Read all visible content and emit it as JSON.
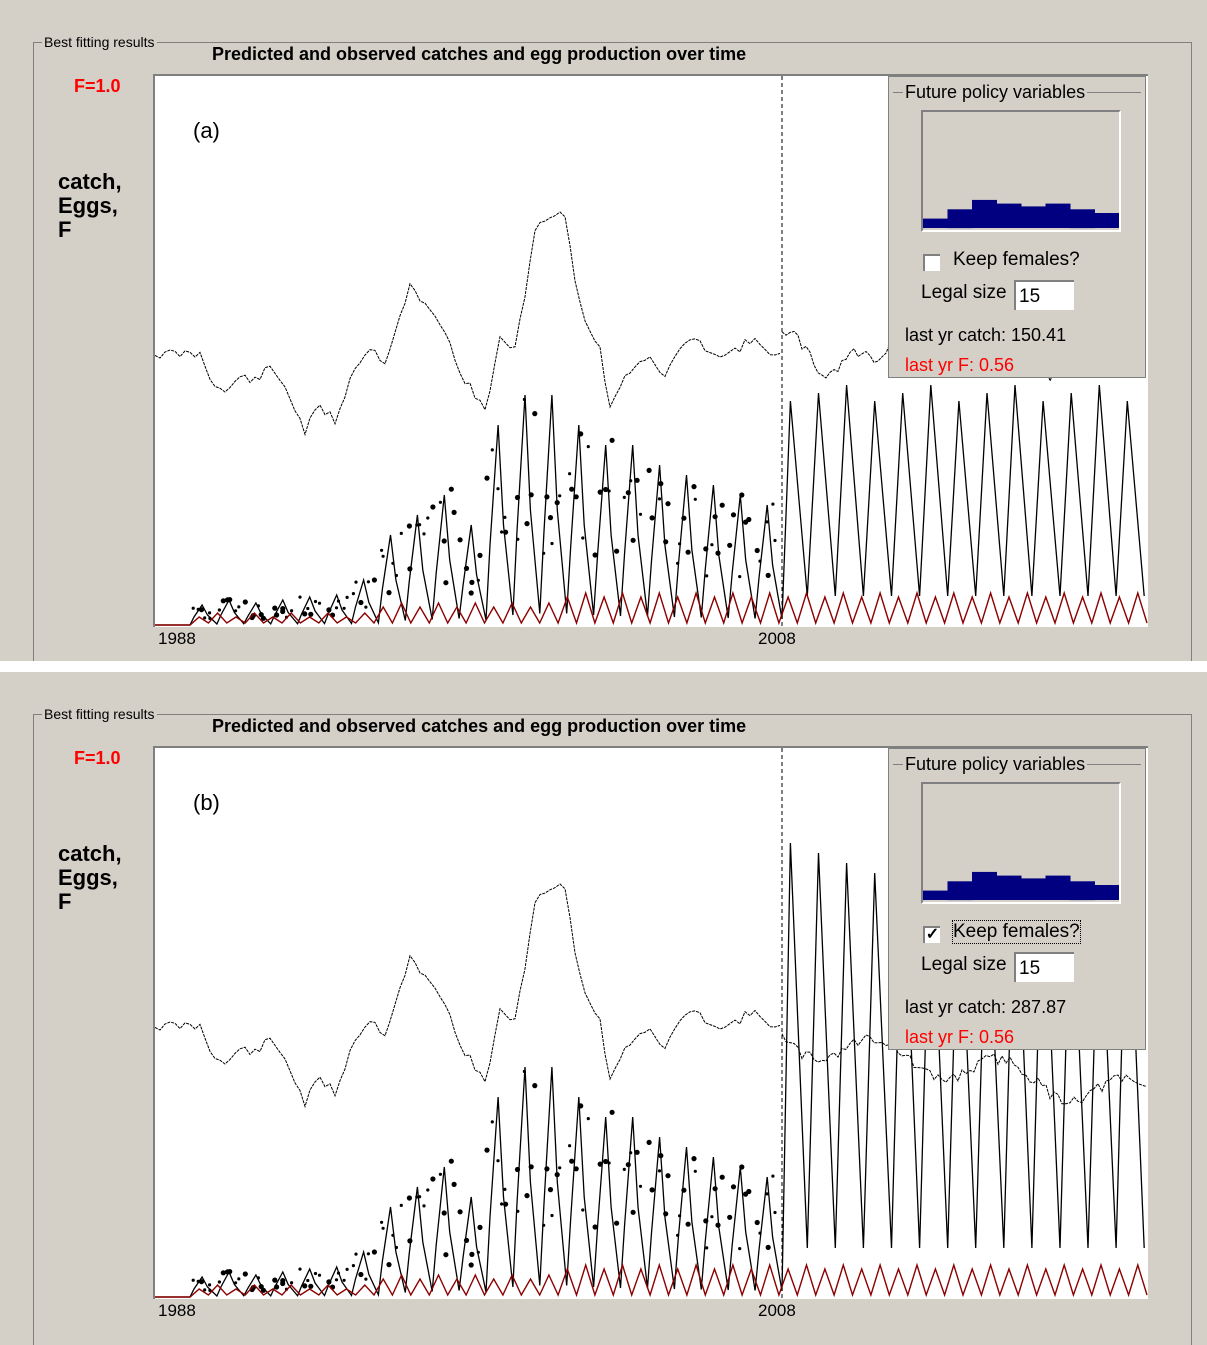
{
  "panels": [
    {
      "group_label": "Best fitting results",
      "title": "Predicted and observed catches and egg production over time",
      "f_label": "F=1.0",
      "ylabel": "catch,\nEggs,\nF",
      "plot_letter": "(a)",
      "x_ticks": [
        "1988",
        "2008"
      ],
      "policy": {
        "legend": "Future policy variables",
        "keep_females_label": "Keep females?",
        "keep_females_checked": false,
        "keep_females_check_glyph": "",
        "legal_size_label": "Legal size",
        "legal_size_value": "15",
        "last_yr_catch": "last yr catch: 150.41",
        "last_yr_f": "last yr F: 0.56"
      }
    },
    {
      "group_label": "Best fitting results",
      "title": "Predicted and observed catches and egg production over time",
      "f_label": "F=1.0",
      "ylabel": "catch,\nEggs,\nF",
      "plot_letter": "(b)",
      "x_ticks": [
        "1988",
        "2008"
      ],
      "policy": {
        "legend": "Future policy variables",
        "keep_females_label": "Keep females?",
        "keep_females_checked": true,
        "keep_females_check_glyph": "✓",
        "legal_size_label": "Legal size",
        "legal_size_value": "15",
        "last_yr_catch": "last yr catch: 287.87",
        "last_yr_f": "last yr F: 0.56"
      }
    }
  ],
  "colors": {
    "background": "#d4d0c8",
    "plot_bg": "#ffffff",
    "catch_line": "#000000",
    "egg_line": "#000000",
    "f_line": "#8b0000",
    "histogram": "#000080",
    "red_text": "#ff0000"
  },
  "chart_data": [
    {
      "type": "line",
      "title": "Predicted and observed catches and egg production over time",
      "x_start": 1988,
      "x_end": 2021,
      "projection_start": 2008,
      "series": [],
      "histogram_values": [
        1,
        2,
        3,
        2.6,
        2.3,
        2.6,
        2,
        1.6
      ]
    },
    {
      "type": "line",
      "title": "Predicted and observed catches and egg production over time",
      "x_start": 1988,
      "x_end": 2021,
      "projection_start": 2008,
      "series": [],
      "histogram_values": [
        1,
        2,
        3,
        2.6,
        2.3,
        2.6,
        2,
        1.6
      ]
    }
  ]
}
